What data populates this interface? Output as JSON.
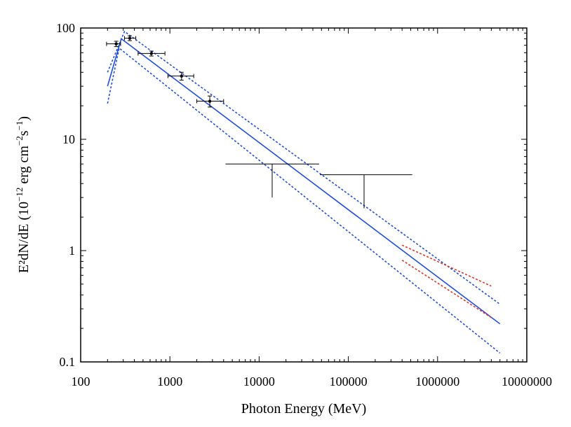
{
  "chart_data": {
    "type": "scatter",
    "xscale": "log",
    "yscale": "log",
    "xlim": [
      100,
      10000000
    ],
    "ylim": [
      0.1,
      100
    ],
    "xlabel": "Photon Energy (MeV)",
    "ylabel_main": "E²dN/dE (10",
    "ylabel_exp1": "−12",
    "ylabel_mid": " erg cm",
    "ylabel_exp2": "−2",
    "ylabel_s": "s",
    "ylabel_exp3": "−1",
    "ylabel_close": ")",
    "x_ticks": [
      {
        "value": 100,
        "label": "100"
      },
      {
        "value": 1000,
        "label": "1000"
      },
      {
        "value": 10000,
        "label": "10000"
      },
      {
        "value": 100000,
        "label": "100000"
      },
      {
        "value": 1000000,
        "label": "1000000"
      },
      {
        "value": 10000000,
        "label": "10000000"
      }
    ],
    "y_ticks": [
      {
        "value": 0.1,
        "label": "0.1"
      },
      {
        "value": 1,
        "label": "1"
      },
      {
        "value": 10,
        "label": "10"
      },
      {
        "value": 100,
        "label": "100"
      }
    ],
    "colors": {
      "data": "#000000",
      "model": "#1f4fe0",
      "alt_model": "#e8321e"
    },
    "data_points": [
      {
        "x": 250,
        "y": 72,
        "xlo": 195,
        "xhi": 280,
        "ylo": 68,
        "yhi": 76
      },
      {
        "x": 355,
        "y": 81,
        "xlo": 310,
        "xhi": 415,
        "ylo": 77,
        "yhi": 85
      },
      {
        "x": 620,
        "y": 59,
        "xlo": 440,
        "xhi": 880,
        "ylo": 56,
        "yhi": 62
      },
      {
        "x": 1350,
        "y": 37,
        "xlo": 950,
        "xhi": 1850,
        "ylo": 34,
        "yhi": 40
      },
      {
        "x": 2800,
        "y": 22,
        "xlo": 2000,
        "xhi": 4000,
        "ylo": 19.5,
        "yhi": 24.5
      }
    ],
    "upper_limits": [
      {
        "x": 14000,
        "y": 6.0,
        "xlo": 4200,
        "xhi": 47000,
        "ymin": 3.0
      },
      {
        "x": 150000,
        "y": 4.8,
        "xlo": 48000,
        "xhi": 520000,
        "ymin": 2.4
      }
    ],
    "series": [
      {
        "name": "model",
        "style": "solid",
        "color": "#1f4fe0",
        "points": [
          [
            200,
            30
          ],
          [
            285,
            80
          ],
          [
            5000000,
            0.22
          ]
        ]
      },
      {
        "name": "model-upper",
        "style": "dotted",
        "color": "#1f4fe0",
        "points": [
          [
            200,
            40
          ],
          [
            310,
            93
          ],
          [
            5000000,
            0.33
          ]
        ]
      },
      {
        "name": "model-lower",
        "style": "dotted",
        "color": "#1f4fe0",
        "points": [
          [
            200,
            21
          ],
          [
            270,
            66
          ],
          [
            5000000,
            0.12
          ]
        ]
      },
      {
        "name": "alt-upper",
        "style": "dotted",
        "color": "#e8321e",
        "points": [
          [
            400000,
            1.12
          ],
          [
            4000000,
            0.48
          ]
        ]
      },
      {
        "name": "alt-lower",
        "style": "dotted",
        "color": "#e8321e",
        "points": [
          [
            400000,
            0.82
          ],
          [
            4000000,
            0.25
          ]
        ]
      }
    ]
  }
}
